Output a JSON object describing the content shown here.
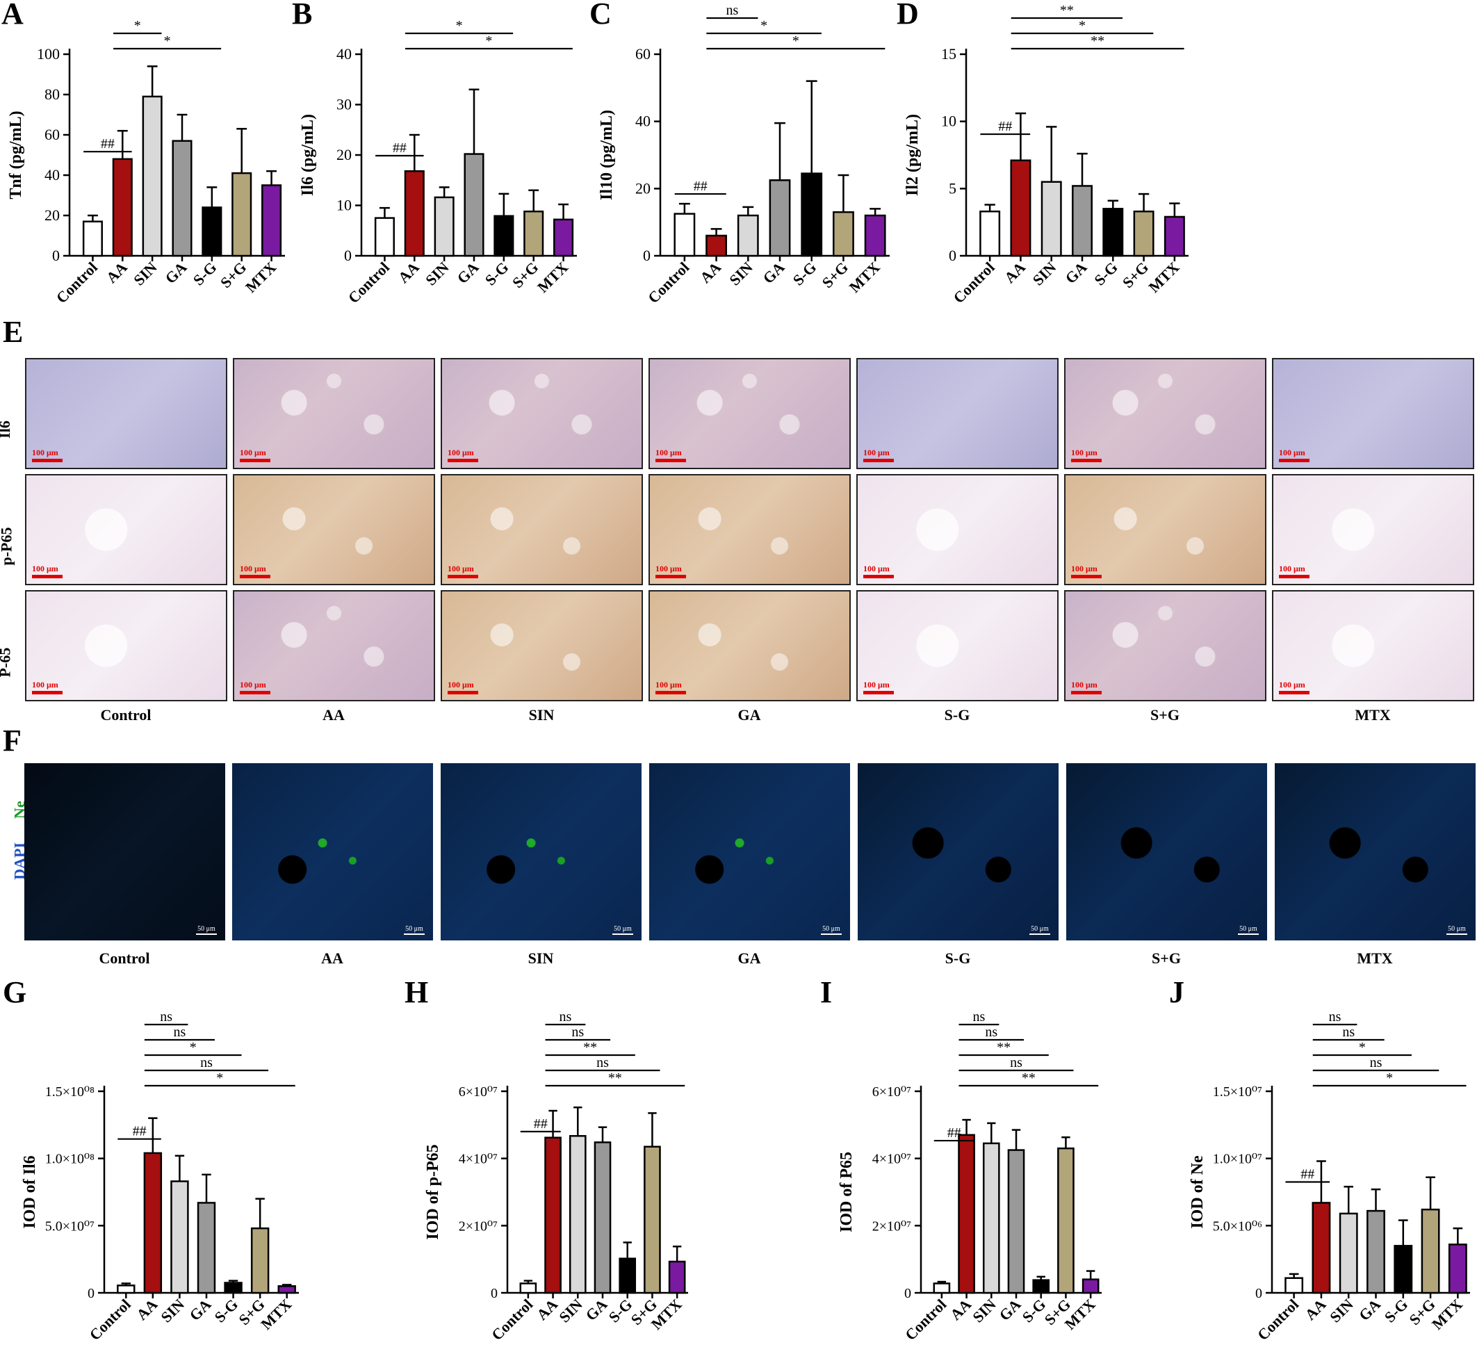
{
  "panels": {
    "A": "A",
    "B": "B",
    "C": "C",
    "D": "D",
    "E": "E",
    "F": "F",
    "G": "G",
    "H": "H",
    "I": "I",
    "J": "J"
  },
  "groups": [
    "Control",
    "AA",
    "SIN",
    "GA",
    "S-G",
    "S+G",
    "MTX"
  ],
  "colors": {
    "Control": "#ffffff",
    "AA": "#a50f0f",
    "SIN": "#d9d9d9",
    "GA": "#999999",
    "S-G": "#000000",
    "S+G": "#b3a57a",
    "MTX": "#7a1aa0"
  },
  "chart_data": [
    {
      "id": "A",
      "type": "bar",
      "ylabel": "Tnf (pg/mL)",
      "categories": [
        "Control",
        "AA",
        "SIN",
        "GA",
        "S-G",
        "S+G",
        "MTX"
      ],
      "values": [
        17,
        48,
        79,
        57,
        24,
        41,
        35
      ],
      "errors": [
        3,
        14,
        15,
        13,
        10,
        22,
        7
      ],
      "ylim": [
        0,
        100
      ],
      "yticks": [
        "0",
        "20",
        "40",
        "60",
        "80",
        "100"
      ],
      "significance": [
        {
          "from": "Control",
          "to": "AA",
          "label": "##"
        },
        {
          "from": "AA",
          "to": "SIN",
          "label": "*"
        },
        {
          "from": "AA",
          "to": "S-G",
          "label": "*"
        }
      ]
    },
    {
      "id": "B",
      "type": "bar",
      "ylabel": "Il6 (pg/mL)",
      "categories": [
        "Control",
        "AA",
        "SIN",
        "GA",
        "S-G",
        "S+G",
        "MTX"
      ],
      "values": [
        7.5,
        16.8,
        11.6,
        20.2,
        7.9,
        8.8,
        7.2
      ],
      "errors": [
        2.0,
        7.2,
        2.0,
        12.8,
        4.4,
        4.2,
        3.0
      ],
      "ylim": [
        0,
        40
      ],
      "yticks": [
        "0",
        "10",
        "20",
        "30",
        "40"
      ],
      "significance": [
        {
          "from": "Control",
          "to": "AA",
          "label": "##"
        },
        {
          "from": "AA",
          "to": "S-G",
          "label": "*"
        },
        {
          "from": "AA",
          "to": "MTX",
          "label": "*"
        }
      ]
    },
    {
      "id": "C",
      "type": "bar",
      "ylabel": "Il10 (pg/mL)",
      "categories": [
        "Control",
        "AA",
        "SIN",
        "GA",
        "S-G",
        "S+G",
        "MTX"
      ],
      "values": [
        12.5,
        6,
        12,
        22.5,
        24.5,
        13,
        12
      ],
      "errors": [
        3,
        2,
        2.5,
        17,
        27.5,
        11,
        2
      ],
      "ylim": [
        0,
        60
      ],
      "yticks": [
        "0",
        "20",
        "40",
        "60"
      ],
      "significance": [
        {
          "from": "Control",
          "to": "AA",
          "label": "##"
        },
        {
          "from": "AA",
          "to": "SIN",
          "label": "ns"
        },
        {
          "from": "AA",
          "to": "S-G",
          "label": "*"
        },
        {
          "from": "AA",
          "to": "MTX",
          "label": "*"
        }
      ]
    },
    {
      "id": "D",
      "type": "bar",
      "ylabel": "Il2 (pg/mL)",
      "categories": [
        "Control",
        "AA",
        "SIN",
        "GA",
        "S-G",
        "S+G",
        "MTX"
      ],
      "values": [
        3.3,
        7.1,
        5.5,
        5.2,
        3.5,
        3.3,
        2.9
      ],
      "errors": [
        0.5,
        3.5,
        4.1,
        2.4,
        0.6,
        1.3,
        1.0
      ],
      "ylim": [
        0,
        15
      ],
      "yticks": [
        "0",
        "5",
        "10",
        "15"
      ],
      "significance": [
        {
          "from": "Control",
          "to": "AA",
          "label": "##"
        },
        {
          "from": "AA",
          "to": "S-G",
          "label": "**"
        },
        {
          "from": "AA",
          "to": "S+G",
          "label": "*"
        },
        {
          "from": "AA",
          "to": "MTX",
          "label": "**"
        }
      ]
    },
    {
      "id": "G",
      "type": "bar",
      "ylabel": "IOD of Il6",
      "categories": [
        "Control",
        "AA",
        "SIN",
        "GA",
        "S-G",
        "S+G",
        "MTX"
      ],
      "values": [
        5500000.0,
        104000000.0,
        83000000.0,
        67000000.0,
        7500000.0,
        48000000.0,
        5000000.0
      ],
      "errors": [
        1500000.0,
        26000000.0,
        19000000.0,
        21000000.0,
        1500000.0,
        22000000.0,
        1000000.0
      ],
      "ylim": [
        0,
        150000000.0
      ],
      "yticks": [
        "0",
        "5.0×10⁰⁷",
        "1.0×10⁰⁸",
        "1.5×10⁰⁸"
      ],
      "significance": [
        {
          "from": "Control",
          "to": "AA",
          "label": "##"
        },
        {
          "from": "AA",
          "to": "SIN",
          "label": "ns"
        },
        {
          "from": "AA",
          "to": "GA",
          "label": "ns"
        },
        {
          "from": "AA",
          "to": "S-G",
          "label": "*"
        },
        {
          "from": "AA",
          "to": "S+G",
          "label": "ns"
        },
        {
          "from": "AA",
          "to": "MTX",
          "label": "*"
        }
      ]
    },
    {
      "id": "H",
      "type": "bar",
      "ylabel": "IOD of p-P65",
      "categories": [
        "Control",
        "AA",
        "SIN",
        "GA",
        "S-G",
        "S+G",
        "MTX"
      ],
      "values": [
        2800000.0,
        46200000.0,
        46700000.0,
        44800000.0,
        10200000.0,
        43500000.0,
        9300000.0
      ],
      "errors": [
        800000.0,
        8000000.0,
        8500000.0,
        4500000.0,
        4800000.0,
        10000000.0,
        4500000.0
      ],
      "ylim": [
        0,
        60000000.0
      ],
      "yticks": [
        "0",
        "2×10⁰⁷",
        "4×10⁰⁷",
        "6×10⁰⁷"
      ],
      "significance": [
        {
          "from": "Control",
          "to": "AA",
          "label": "##"
        },
        {
          "from": "AA",
          "to": "SIN",
          "label": "ns"
        },
        {
          "from": "AA",
          "to": "GA",
          "label": "ns"
        },
        {
          "from": "AA",
          "to": "S-G",
          "label": "**"
        },
        {
          "from": "AA",
          "to": "S+G",
          "label": "ns"
        },
        {
          "from": "AA",
          "to": "MTX",
          "label": "**"
        }
      ]
    },
    {
      "id": "I",
      "type": "bar",
      "ylabel": "IOD of P65",
      "categories": [
        "Control",
        "AA",
        "SIN",
        "GA",
        "S-G",
        "S+G",
        "MTX"
      ],
      "values": [
        2800000.0,
        47000000.0,
        44500000.0,
        42500000.0,
        3800000.0,
        43000000.0,
        4000000.0
      ],
      "errors": [
        500000.0,
        4500000.0,
        6000000.0,
        6000000.0,
        1000000.0,
        3300000.0,
        2500000.0
      ],
      "ylim": [
        0,
        60000000.0
      ],
      "yticks": [
        "0",
        "2×10⁰⁷",
        "4×10⁰⁷",
        "6×10⁰⁷"
      ],
      "significance": [
        {
          "from": "Control",
          "to": "AA",
          "label": "##"
        },
        {
          "from": "AA",
          "to": "SIN",
          "label": "ns"
        },
        {
          "from": "AA",
          "to": "GA",
          "label": "ns"
        },
        {
          "from": "AA",
          "to": "S-G",
          "label": "**"
        },
        {
          "from": "AA",
          "to": "S+G",
          "label": "ns"
        },
        {
          "from": "AA",
          "to": "MTX",
          "label": "**"
        }
      ]
    },
    {
      "id": "J",
      "type": "bar",
      "ylabel": "IOD of Ne",
      "categories": [
        "Control",
        "AA",
        "SIN",
        "GA",
        "S-G",
        "S+G",
        "MTX"
      ],
      "values": [
        1100000.0,
        6700000.0,
        5900000.0,
        6100000.0,
        3500000.0,
        6200000.0,
        3600000.0
      ],
      "errors": [
        300000.0,
        3100000.0,
        2000000.0,
        1600000.0,
        1900000.0,
        2400000.0,
        1200000.0
      ],
      "ylim": [
        0,
        15000000.0
      ],
      "yticks": [
        "0",
        "5.0×10⁰⁶",
        "1.0×10⁰⁷",
        "1.5×10⁰⁷"
      ],
      "significance": [
        {
          "from": "Control",
          "to": "AA",
          "label": "##"
        },
        {
          "from": "AA",
          "to": "SIN",
          "label": "ns"
        },
        {
          "from": "AA",
          "to": "GA",
          "label": "ns"
        },
        {
          "from": "AA",
          "to": "S-G",
          "label": "*"
        },
        {
          "from": "AA",
          "to": "S+G",
          "label": "ns"
        },
        {
          "from": "AA",
          "to": "MTX",
          "label": "*"
        }
      ]
    }
  ],
  "panel_E": {
    "rows": [
      "Il6",
      "p-P65",
      "P-65"
    ],
    "scalebar": "100 μm",
    "columns": [
      "Control",
      "AA",
      "SIN",
      "GA",
      "S-G",
      "S+G",
      "MTX"
    ]
  },
  "panel_F": {
    "stain_label_1": "DAPI",
    "stain_label_2": "Ne",
    "scalebar": "50 μm",
    "columns": [
      "Control",
      "AA",
      "SIN",
      "GA",
      "S-G",
      "S+G",
      "MTX"
    ]
  }
}
